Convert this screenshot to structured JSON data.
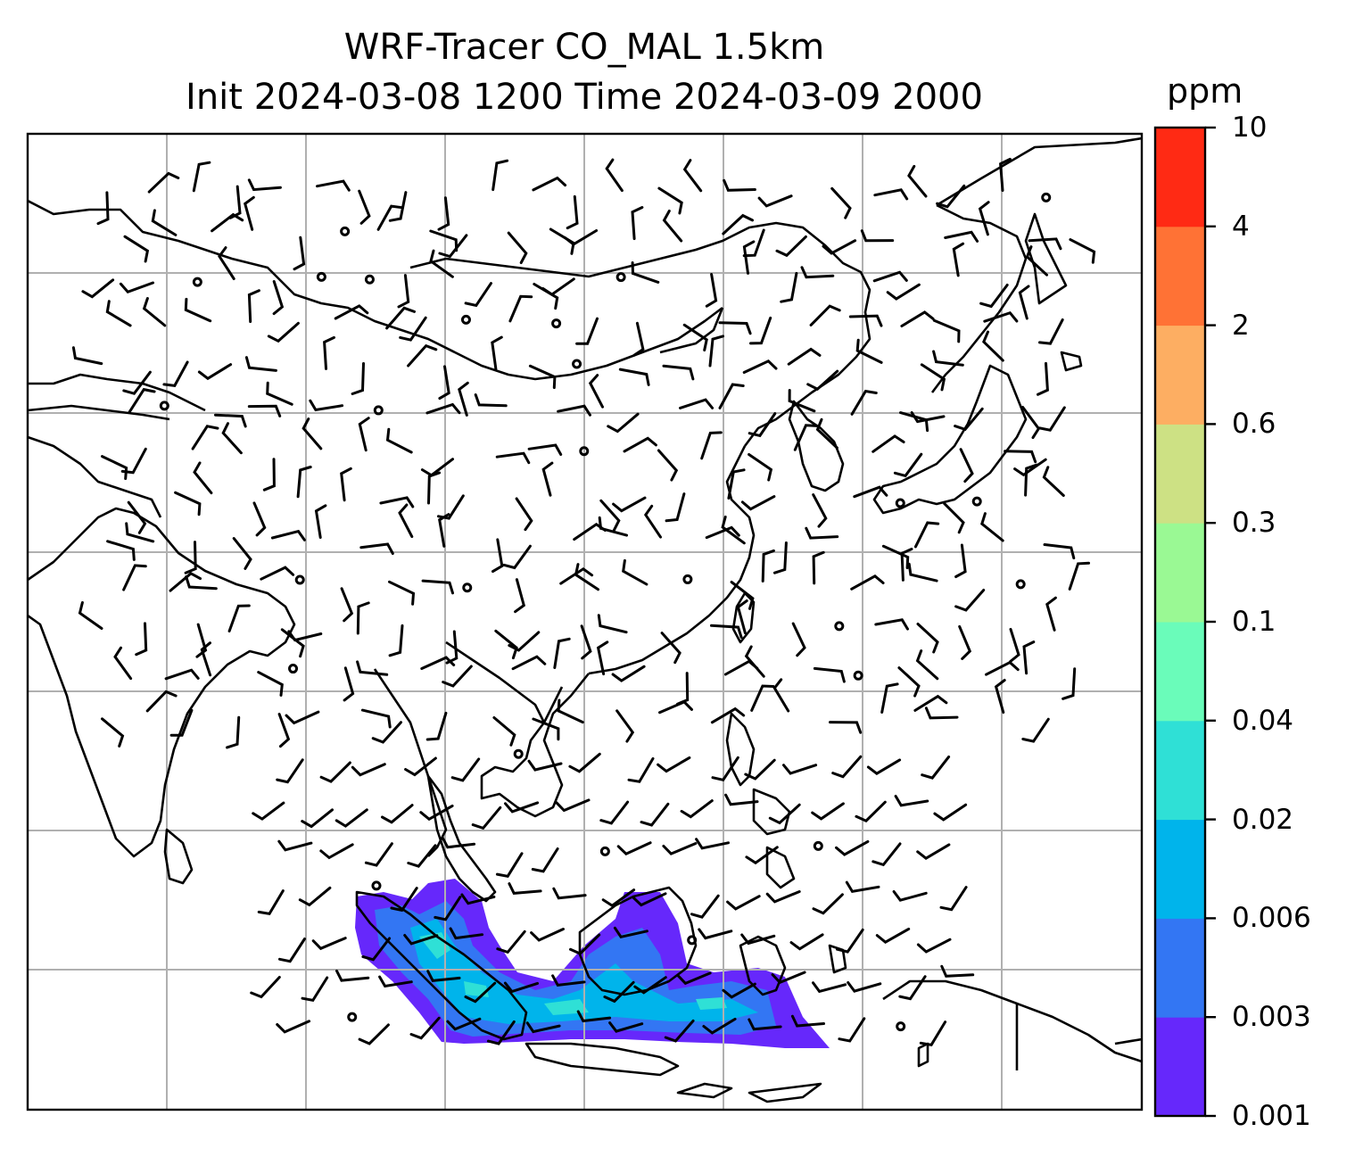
{
  "title": {
    "line1": "WRF-Tracer CO_MAL 1.5km",
    "line2": "Init 2024-03-08 1200 Time 2024-03-09 2000"
  },
  "colorbar": {
    "units": "ppm",
    "ticks": [
      "0.001",
      "0.003",
      "0.006",
      "0.02",
      "0.04",
      "0.1",
      "0.3",
      "0.6",
      "2",
      "4",
      "10"
    ],
    "colors": [
      "#6628fb",
      "#3376f3",
      "#00b4eb",
      "#2fe0d6",
      "#6afcba",
      "#9af994",
      "#cde184",
      "#fdae62",
      "#ff7235",
      "#ff2a14"
    ]
  },
  "map": {
    "coastline_color": "#000000",
    "grid_color": "#b0b0b0",
    "grid_lines_x": 7,
    "grid_lines_y": 6
  }
}
